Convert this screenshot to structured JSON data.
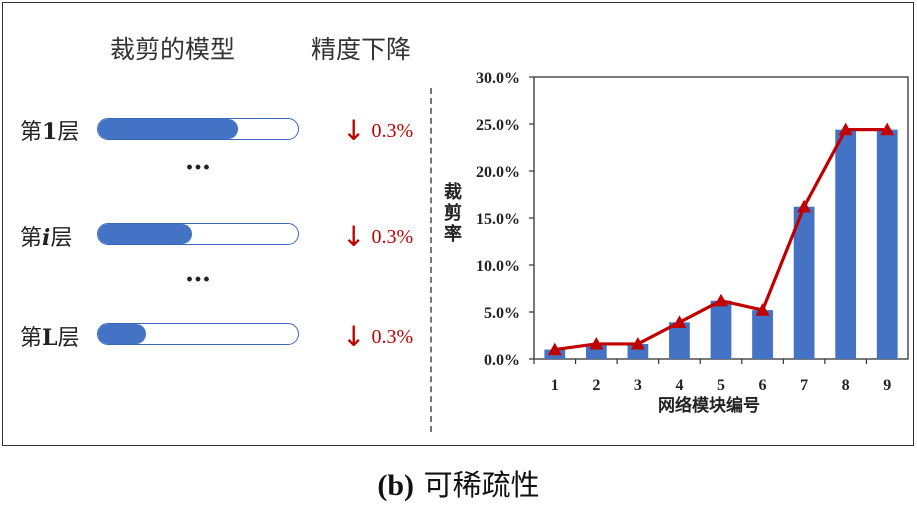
{
  "left_panel": {
    "header_model": "裁剪的模型",
    "header_drop": "精度下降",
    "layers": [
      {
        "label": "第1层",
        "prefix": "第",
        "index": "1",
        "suffix": "层",
        "index_italic": false,
        "fill_fraction": 0.7,
        "drop": "0.3%"
      },
      {
        "label": "第i层",
        "prefix": "第",
        "index": "i",
        "suffix": "层",
        "index_italic": true,
        "fill_fraction": 0.47,
        "drop": "0.3%"
      },
      {
        "label": "第L层",
        "prefix": "第",
        "index": "L",
        "suffix": "层",
        "index_italic": false,
        "fill_fraction": 0.24,
        "drop": "0.3%"
      }
    ],
    "ellipsis": "…",
    "arrow": "↓"
  },
  "chart_data": {
    "type": "bar",
    "categories": [
      "1",
      "2",
      "3",
      "4",
      "5",
      "6",
      "7",
      "8",
      "9"
    ],
    "values": [
      1.0,
      1.6,
      1.6,
      3.9,
      6.2,
      5.2,
      16.2,
      24.4,
      24.4
    ],
    "line_values": [
      1.0,
      1.6,
      1.6,
      3.9,
      6.2,
      5.2,
      16.2,
      24.4,
      24.4
    ],
    "bar_color": "#4472c4",
    "line_color": "#c00000",
    "marker": "triangle",
    "xlabel": "网络模块编号",
    "ylabel": "裁剪率",
    "ylim": [
      0,
      30
    ],
    "yticks": [
      "0.0%",
      "5.0%",
      "10.0%",
      "15.0%",
      "20.0%",
      "25.0%",
      "30.0%"
    ],
    "grid": false
  },
  "caption": {
    "tag": "(b)",
    "text": "可稀疏性"
  }
}
